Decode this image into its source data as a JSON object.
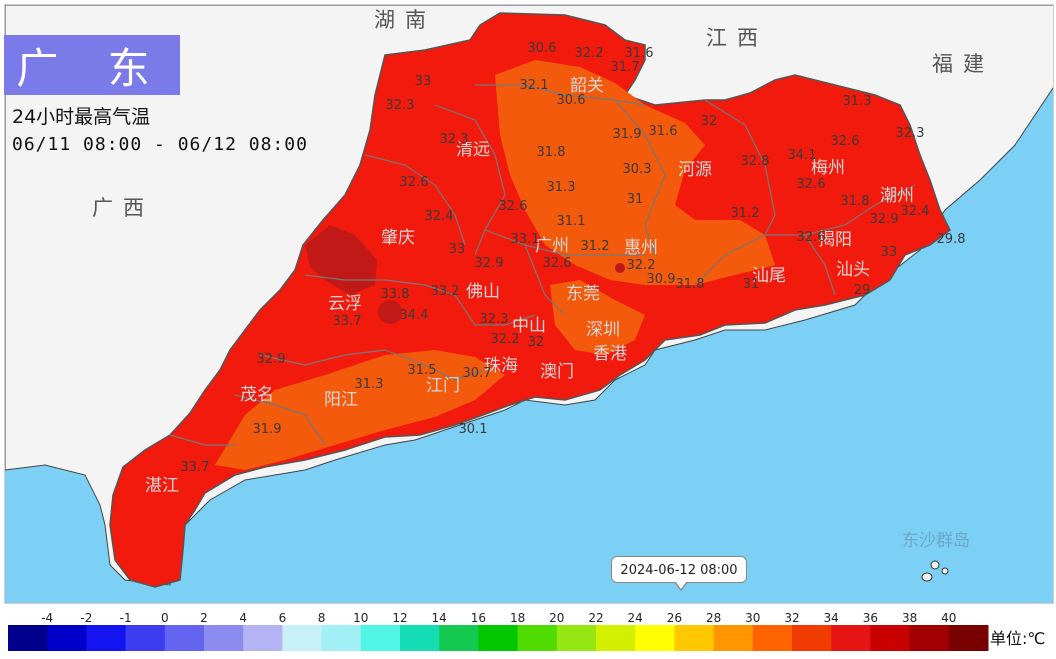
{
  "title": "广 东",
  "subtitle": "24小时最高气温",
  "time_range": "06/11 08:00 - 06/12 08:00",
  "timestamp": "2024-06-12 08:00",
  "unit": "单位:℃",
  "colors": {
    "sea": "#7ccff5",
    "land_outside": "#f4f4f4",
    "title_bg": "#7a7ae8",
    "hot_dark": "#c11818",
    "hot": "#f21a0c",
    "warm": "#f35a0c"
  },
  "neighbors": [
    "湖南",
    "江西",
    "福建",
    "广西"
  ],
  "cities": [
    "韶关",
    "清远",
    "河源",
    "梅州",
    "潮州",
    "揭阳",
    "汕头",
    "汕尾",
    "惠州",
    "广州",
    "肇庆",
    "云浮",
    "佛山",
    "东莞",
    "深圳",
    "中山",
    "珠海",
    "澳门",
    "香港",
    "江门",
    "阳江",
    "茂名",
    "湛江",
    "东沙群岛"
  ],
  "stations": [
    {
      "label": "30.6"
    },
    {
      "label": "32.2"
    },
    {
      "label": "31.6"
    },
    {
      "label": "31.7"
    },
    {
      "label": "32.1"
    },
    {
      "label": "30.6"
    },
    {
      "label": "33"
    },
    {
      "label": "32.3"
    },
    {
      "label": "32.3"
    },
    {
      "label": "31.8"
    },
    {
      "label": "31.9"
    },
    {
      "label": "31.6"
    },
    {
      "label": "32"
    },
    {
      "label": "31.3"
    },
    {
      "label": "32.6"
    },
    {
      "label": "32.3"
    },
    {
      "label": "32.8"
    },
    {
      "label": "34.1"
    },
    {
      "label": "32.6"
    },
    {
      "label": "30.3"
    },
    {
      "label": "32.6"
    },
    {
      "label": "31.3"
    },
    {
      "label": "31.8"
    },
    {
      "label": "32.4"
    },
    {
      "label": "32.6"
    },
    {
      "label": "31.1"
    },
    {
      "label": "31"
    },
    {
      "label": "31.2"
    },
    {
      "label": "32.9"
    },
    {
      "label": "32.4"
    },
    {
      "label": "33"
    },
    {
      "label": "33.1"
    },
    {
      "label": "31.2"
    },
    {
      "label": "32.6"
    },
    {
      "label": "32.2"
    },
    {
      "label": "29.8"
    },
    {
      "label": "32.9"
    },
    {
      "label": "32.6"
    },
    {
      "label": "30.9"
    },
    {
      "label": "31.8"
    },
    {
      "label": "31"
    },
    {
      "label": "33.8"
    },
    {
      "label": "33.2"
    },
    {
      "label": "29"
    },
    {
      "label": "33.7"
    },
    {
      "label": "34.4"
    },
    {
      "label": "32.3"
    },
    {
      "label": "32.2"
    },
    {
      "label": "31.5"
    },
    {
      "label": "32.9"
    },
    {
      "label": "30.7"
    },
    {
      "label": "31.3"
    },
    {
      "label": "31.9"
    },
    {
      "label": "30.1"
    },
    {
      "label": "33.7"
    },
    {
      "label": "32"
    },
    {
      "label": "33"
    }
  ],
  "legend": {
    "ticks": [
      "-4",
      "-2",
      "-1",
      "0",
      "2",
      "4",
      "6",
      "8",
      "10",
      "12",
      "14",
      "16",
      "18",
      "20",
      "22",
      "24",
      "26",
      "28",
      "30",
      "32",
      "34",
      "36",
      "38",
      "40"
    ],
    "colors": [
      "#00008c",
      "#0000c8",
      "#1414f0",
      "#3c3cf0",
      "#6464f0",
      "#8c8cf0",
      "#b4b4f5",
      "#c8f0f8",
      "#a0f0f5",
      "#50f5e6",
      "#14dcb4",
      "#14c850",
      "#00c800",
      "#50dc00",
      "#96e614",
      "#d2f000",
      "#ffff00",
      "#ffc800",
      "#ff9600",
      "#ff6400",
      "#f03c00",
      "#e61414",
      "#c80000",
      "#a00000",
      "#780000"
    ]
  }
}
